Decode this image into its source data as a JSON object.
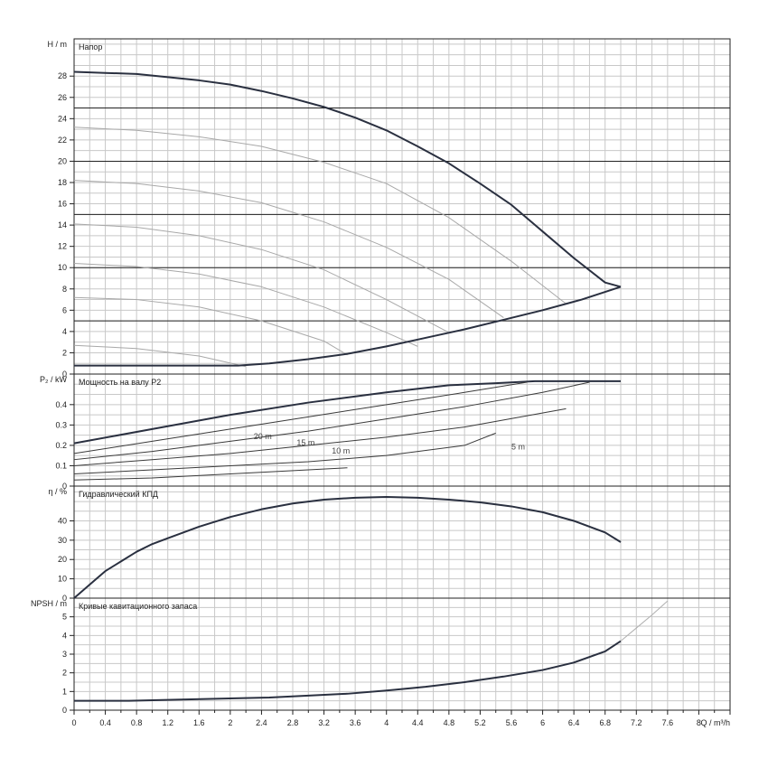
{
  "chart_data": [
    {
      "type": "line",
      "panel": "head",
      "title": "Напор",
      "ylabel": "H / m",
      "xlim": [
        0,
        8.4
      ],
      "ylim": [
        0,
        31.5
      ],
      "yticks": [
        "0",
        "2",
        "4",
        "6",
        "8",
        "10",
        "12",
        "14",
        "16",
        "18",
        "20",
        "22",
        "24",
        "26",
        "28"
      ],
      "series": [
        {
          "name": "max",
          "x": [
            0,
            0.4,
            0.8,
            1.2,
            1.6,
            2,
            2.4,
            2.8,
            3.2,
            3.6,
            4,
            4.4,
            4.8,
            5.2,
            5.6,
            6,
            6.4,
            6.8,
            7.0
          ],
          "y": [
            28.4,
            28.3,
            28.2,
            27.9,
            27.6,
            27.2,
            26.6,
            25.9,
            25.1,
            24.1,
            22.9,
            21.4,
            19.8,
            17.9,
            15.9,
            13.4,
            10.9,
            8.6,
            8.2
          ]
        },
        {
          "name": "",
          "x": [
            0,
            0.8,
            1.6,
            2.4,
            3.2,
            4,
            4.8,
            5.6,
            6.3
          ],
          "y": [
            23.2,
            22.9,
            22.3,
            21.4,
            19.9,
            17.9,
            14.7,
            10.6,
            6.6
          ]
        },
        {
          "name": "",
          "x": [
            0,
            0.8,
            1.6,
            2.4,
            3.2,
            4,
            4.8,
            5.5
          ],
          "y": [
            18.2,
            17.9,
            17.2,
            16.1,
            14.3,
            11.9,
            8.9,
            5.3
          ]
        },
        {
          "name": "",
          "x": [
            0,
            0.8,
            1.6,
            2.4,
            3.2,
            4,
            4.8
          ],
          "y": [
            14.1,
            13.8,
            13,
            11.7,
            9.8,
            7,
            3.9
          ]
        },
        {
          "name": "",
          "x": [
            0,
            0.8,
            1.6,
            2.4,
            3.2,
            4,
            4.4
          ],
          "y": [
            10.4,
            10.1,
            9.4,
            8.2,
            6.3,
            3.9,
            2.6
          ]
        },
        {
          "name": "",
          "x": [
            0,
            0.8,
            1.6,
            2.4,
            3.2,
            3.5
          ],
          "y": [
            7.2,
            7,
            6.3,
            5,
            3.1,
            1.8
          ]
        },
        {
          "name": "",
          "x": [
            0,
            0.8,
            1.6,
            2.2
          ],
          "y": [
            2.7,
            2.4,
            1.7,
            0.7
          ]
        },
        {
          "name": "min",
          "x": [
            0,
            2.1,
            2.5,
            3,
            3.5,
            4,
            4.5,
            5,
            5.5,
            6,
            6.5,
            7.0
          ],
          "y": [
            0.8,
            0.8,
            1,
            1.4,
            1.9,
            2.6,
            3.4,
            4.2,
            5.1,
            6,
            7,
            8.2
          ]
        }
      ],
      "reference_lines": [
        5,
        10,
        15,
        20,
        25
      ]
    },
    {
      "type": "line",
      "panel": "power",
      "title": "Мощность на валу P2",
      "ylabel": "P₂ / kW",
      "ylim": [
        0,
        0.55
      ],
      "yticks": [
        "0",
        "0.1",
        "0.2",
        "0.3",
        "0.4"
      ],
      "annotations": [
        "20 m",
        "15 m",
        "10 m",
        "5 m"
      ],
      "series": [
        {
          "name": "",
          "x": [
            0,
            1,
            2,
            3,
            4,
            4.8,
            5.4,
            5.9,
            6.6,
            7.0
          ],
          "y": [
            0.21,
            0.28,
            0.35,
            0.41,
            0.46,
            0.495,
            0.505,
            0.515,
            0.515,
            0.515
          ]
        },
        {
          "name": "",
          "x": [
            0,
            1,
            2,
            3,
            4,
            5,
            5.8
          ],
          "y": [
            0.16,
            0.22,
            0.28,
            0.34,
            0.4,
            0.46,
            0.51
          ]
        },
        {
          "name": "",
          "x": [
            0,
            1,
            2,
            3,
            4,
            5,
            6,
            6.6
          ],
          "y": [
            0.13,
            0.17,
            0.22,
            0.27,
            0.33,
            0.39,
            0.46,
            0.51
          ]
        },
        {
          "name": "",
          "x": [
            0,
            1,
            2,
            3,
            4,
            5,
            6.3
          ],
          "y": [
            0.1,
            0.13,
            0.16,
            0.2,
            0.24,
            0.29,
            0.38
          ]
        },
        {
          "name": "",
          "x": [
            0,
            1,
            2,
            3,
            4,
            5,
            5.4
          ],
          "y": [
            0.06,
            0.08,
            0.1,
            0.12,
            0.15,
            0.2,
            0.26
          ]
        },
        {
          "name": "",
          "x": [
            0,
            1,
            2,
            3,
            3.5
          ],
          "y": [
            0.03,
            0.04,
            0.06,
            0.08,
            0.09
          ]
        }
      ]
    },
    {
      "type": "line",
      "panel": "efficiency",
      "title": "Гидравлический КПД",
      "ylabel": "η / %",
      "ylim": [
        0,
        58
      ],
      "yticks": [
        "0",
        "10",
        "20",
        "30",
        "40"
      ],
      "series": [
        {
          "name": "",
          "x": [
            0,
            0.2,
            0.4,
            0.6,
            0.8,
            1,
            1.2,
            1.4,
            1.6,
            1.8,
            2,
            2.4,
            2.8,
            3.2,
            3.6,
            4,
            4.4,
            4.8,
            5.2,
            5.6,
            6,
            6.4,
            6.8,
            7.0
          ],
          "y": [
            0,
            7,
            14,
            19,
            24,
            28,
            31,
            34,
            37,
            39.5,
            42,
            46,
            49,
            51,
            52,
            52.4,
            52,
            51,
            49.6,
            47.5,
            44.5,
            40,
            34,
            29
          ]
        }
      ]
    },
    {
      "type": "line",
      "panel": "npsh",
      "title": "Кривые кавитационного запаса",
      "ylabel": "NPSH / m",
      "xlabel": "Q / m³/h",
      "ylim": [
        0,
        6
      ],
      "yticks": [
        "0",
        "1",
        "2",
        "3",
        "4",
        "5"
      ],
      "xticks": [
        "0",
        "0.4",
        "0.8",
        "1.2",
        "1.6",
        "2",
        "2.4",
        "2.8",
        "3.2",
        "3.6",
        "4",
        "4.4",
        "4.8",
        "5.2",
        "5.6",
        "6",
        "6.4",
        "6.8",
        "7.2",
        "7.6",
        "8"
      ],
      "series": [
        {
          "name": "",
          "x": [
            0,
            0.7,
            1.5,
            2.5,
            3.5,
            4,
            4.5,
            5,
            5.5,
            6,
            6.4,
            6.8,
            7.0
          ],
          "y": [
            0.5,
            0.5,
            0.58,
            0.68,
            0.88,
            1.05,
            1.25,
            1.5,
            1.8,
            2.15,
            2.55,
            3.15,
            3.7
          ]
        },
        {
          "name": "",
          "x": [
            7.0,
            7.2,
            7.4,
            7.6
          ],
          "y": [
            3.7,
            4.4,
            5.1,
            5.85
          ]
        }
      ]
    }
  ]
}
